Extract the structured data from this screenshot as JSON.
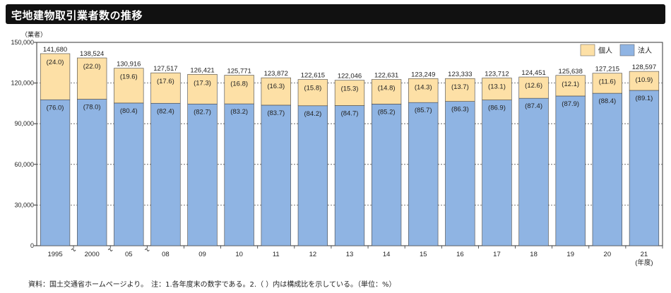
{
  "title": "宅地建物取引業者数の推移",
  "source_note": "資料：国土交通省ホームページより。　注：1.各年度末の数字である。2.（ ）内は構成比を示している。（単位：%）",
  "chart_data": {
    "type": "bar",
    "stacked": true,
    "ylabel_unit": "（業者）",
    "x_unit": "(年度)",
    "ylim": [
      0,
      150000
    ],
    "yticks": [
      0,
      30000,
      60000,
      90000,
      120000,
      150000
    ],
    "ytick_labels": [
      "0",
      "30,000",
      "60,000",
      "90,000",
      "120,000",
      "150,000"
    ],
    "grid": true,
    "legend_position": "top-right",
    "categories": [
      "1995",
      "2000",
      "05",
      "08",
      "09",
      "10",
      "11",
      "12",
      "13",
      "14",
      "15",
      "16",
      "17",
      "18",
      "19",
      "20",
      "21"
    ],
    "totals": [
      141680,
      138524,
      130916,
      127517,
      126421,
      125771,
      123872,
      122615,
      122046,
      122631,
      123249,
      123333,
      123712,
      124451,
      125638,
      127215,
      128597
    ],
    "total_labels": [
      "141,680",
      "138,524",
      "130,916",
      "127,517",
      "126,421",
      "125,771",
      "123,872",
      "122,615",
      "122,046",
      "122,631",
      "123,249",
      "123,333",
      "123,712",
      "124,451",
      "125,638",
      "127,215",
      "128,597"
    ],
    "axis_breaks_after": [
      "1995",
      "2000",
      "05"
    ],
    "series": [
      {
        "name": "法人",
        "color": "#8fb4e3",
        "shares": [
          76.0,
          78.0,
          80.4,
          82.4,
          82.7,
          83.2,
          83.7,
          84.2,
          84.7,
          85.2,
          85.7,
          86.3,
          86.9,
          87.4,
          87.9,
          88.4,
          89.1
        ],
        "labels": [
          "(76.0)",
          "(78.0)",
          "(80.4)",
          "(82.4)",
          "(82.7)",
          "(83.2)",
          "(83.7)",
          "(84.2)",
          "(84.7)",
          "(85.2)",
          "(85.7)",
          "(86.3)",
          "(86.9)",
          "(87.4)",
          "(87.9)",
          "(88.4)",
          "(89.1)"
        ]
      },
      {
        "name": "個人",
        "color": "#fde0a6",
        "shares": [
          24.0,
          22.0,
          19.6,
          17.6,
          17.3,
          16.8,
          16.3,
          15.8,
          15.3,
          14.8,
          14.3,
          13.7,
          13.1,
          12.6,
          12.1,
          11.6,
          10.9
        ],
        "labels": [
          "(24.0)",
          "(22.0)",
          "(19.6)",
          "(17.6)",
          "(17.3)",
          "(16.8)",
          "(16.3)",
          "(15.8)",
          "(15.3)",
          "(14.8)",
          "(14.3)",
          "(13.7)",
          "(13.1)",
          "(12.6)",
          "(12.1)",
          "(11.6)",
          "(10.9)"
        ]
      }
    ]
  }
}
